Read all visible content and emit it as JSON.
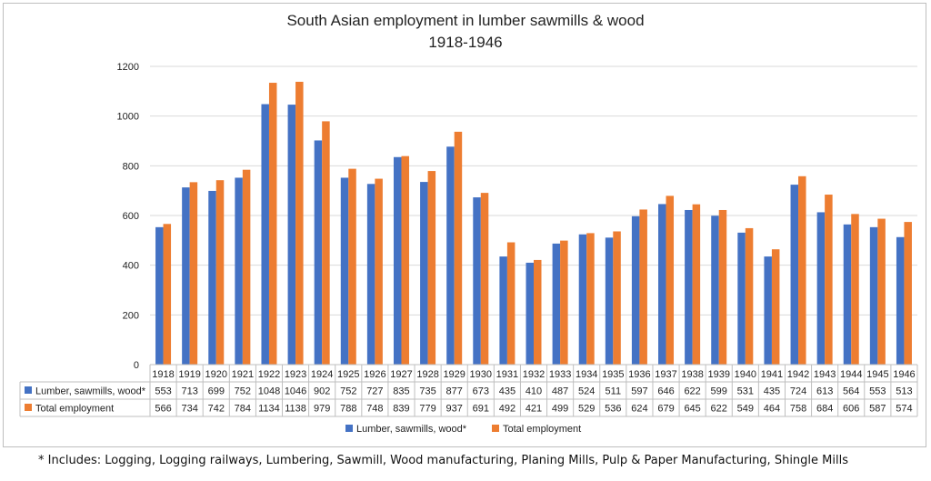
{
  "chart_data": {
    "type": "bar",
    "title": "South Asian employment in lumber sawmills & wood",
    "subtitle": "1918-1946",
    "ylim": [
      0,
      1200
    ],
    "yticks": [
      0,
      200,
      400,
      600,
      800,
      1000,
      1200
    ],
    "grid": true,
    "legend_placement": "bottom",
    "categories": [
      "1918",
      "1919",
      "1920",
      "1921",
      "1922",
      "1923",
      "1924",
      "1925",
      "1926",
      "1927",
      "1928",
      "1929",
      "1930",
      "1931",
      "1932",
      "1933",
      "1934",
      "1935",
      "1936",
      "1937",
      "1938",
      "1939",
      "1940",
      "1941",
      "1942",
      "1943",
      "1944",
      "1945",
      "1946"
    ],
    "series": [
      {
        "name": "Lumber, sawmills, wood*",
        "color": "#4472c4",
        "values": [
          553,
          713,
          699,
          752,
          1048,
          1046,
          902,
          752,
          727,
          835,
          735,
          877,
          673,
          435,
          410,
          487,
          524,
          511,
          597,
          646,
          622,
          599,
          531,
          435,
          724,
          613,
          564,
          553,
          513
        ]
      },
      {
        "name": "Total employment",
        "color": "#ed7d31",
        "values": [
          566,
          734,
          742,
          784,
          1134,
          1138,
          979,
          788,
          748,
          839,
          779,
          937,
          691,
          492,
          421,
          499,
          529,
          536,
          624,
          679,
          645,
          622,
          549,
          464,
          758,
          684,
          606,
          587,
          574
        ]
      }
    ]
  },
  "footnote": "* Includes: Logging, Logging railways, Lumbering, Sawmill, Wood manufacturing, Planing Mills, Pulp & Paper Manufacturing, Shingle Mills"
}
